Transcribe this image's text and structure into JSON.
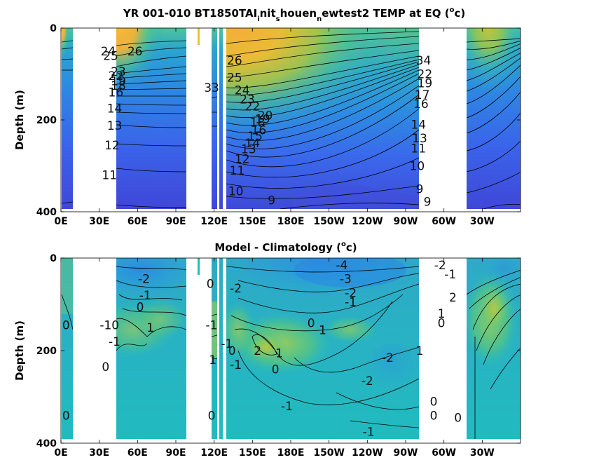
{
  "chart_data": [
    {
      "type": "heatmap",
      "title_main": "YR 001-010 BT1850TAI",
      "title_parts": [
        "i",
        "nit",
        "s",
        "houen",
        "n",
        "ewtest2 TEMP at EQ (",
        "o",
        "c)"
      ],
      "ylabel": "Depth (m)",
      "yticks": [
        "0",
        "200",
        "400"
      ],
      "ylim": [
        400,
        0
      ],
      "xticks": [
        "0E",
        "30E",
        "60E",
        "90E",
        "120E",
        "150E",
        "180E",
        "150W",
        "120W",
        "90W",
        "60W",
        "30W"
      ],
      "xtick_values": [
        0,
        30,
        60,
        90,
        120,
        150,
        180,
        210,
        240,
        270,
        300,
        330
      ],
      "xlim": [
        0,
        360
      ],
      "ocean_lon_ranges": [
        [
          0,
          7
        ],
        [
          35,
          77
        ],
        [
          97,
          100
        ],
        [
          116,
          120
        ],
        [
          122,
          225
        ],
        [
          280,
          313
        ]
      ],
      "colormap": [
        "#3e26a8",
        "#3a5ef0",
        "#2a96d8",
        "#23b9b0",
        "#6acb6c",
        "#c9c03a",
        "#f6b23a",
        "#f9e21c"
      ],
      "color_range": [
        8,
        28
      ],
      "contour_labels": [
        {
          "text": "26",
          "lon": 58,
          "depth": 50
        },
        {
          "text": "25",
          "lon": 39,
          "depth": 60
        },
        {
          "text": "24",
          "lon": 37,
          "depth": 50
        },
        {
          "text": "23",
          "lon": 45,
          "depth": 95
        },
        {
          "text": "22",
          "lon": 43,
          "depth": 104
        },
        {
          "text": "19",
          "lon": 45,
          "depth": 115
        },
        {
          "text": "18",
          "lon": 45,
          "depth": 125
        },
        {
          "text": "16",
          "lon": 43,
          "depth": 140
        },
        {
          "text": "14",
          "lon": 42,
          "depth": 175
        },
        {
          "text": "13",
          "lon": 42,
          "depth": 212
        },
        {
          "text": "12",
          "lon": 40,
          "depth": 255
        },
        {
          "text": "11",
          "lon": 38,
          "depth": 320
        },
        {
          "text": "33",
          "lon": 118,
          "depth": 130
        },
        {
          "text": "26",
          "lon": 136,
          "depth": 70
        },
        {
          "text": "25",
          "lon": 136,
          "depth": 108
        },
        {
          "text": "24",
          "lon": 142,
          "depth": 135
        },
        {
          "text": "23",
          "lon": 146,
          "depth": 155
        },
        {
          "text": "22",
          "lon": 150,
          "depth": 170
        },
        {
          "text": "20",
          "lon": 160,
          "depth": 190
        },
        {
          "text": "19",
          "lon": 158,
          "depth": 198
        },
        {
          "text": "18",
          "lon": 154,
          "depth": 205
        },
        {
          "text": "16",
          "lon": 155,
          "depth": 222
        },
        {
          "text": "15",
          "lon": 152,
          "depth": 235
        },
        {
          "text": "14",
          "lon": 150,
          "depth": 250
        },
        {
          "text": "13",
          "lon": 147,
          "depth": 263
        },
        {
          "text": "12",
          "lon": 142,
          "depth": 285
        },
        {
          "text": "11",
          "lon": 138,
          "depth": 310
        },
        {
          "text": "10",
          "lon": 137,
          "depth": 355
        },
        {
          "text": "9",
          "lon": 165,
          "depth": 375
        },
        {
          "text": "34",
          "lon": 284,
          "depth": 70
        },
        {
          "text": "22",
          "lon": 285,
          "depth": 100
        },
        {
          "text": "19",
          "lon": 285,
          "depth": 120
        },
        {
          "text": "17",
          "lon": 283,
          "depth": 145
        },
        {
          "text": "16",
          "lon": 282,
          "depth": 165
        },
        {
          "text": "14",
          "lon": 280,
          "depth": 210
        },
        {
          "text": "13",
          "lon": 281,
          "depth": 240
        },
        {
          "text": "11",
          "lon": 280,
          "depth": 262
        },
        {
          "text": "10",
          "lon": 279,
          "depth": 300
        },
        {
          "text": "9",
          "lon": 281,
          "depth": 350
        },
        {
          "text": "9",
          "lon": 287,
          "depth": 378
        }
      ]
    },
    {
      "type": "heatmap",
      "title_main": "Model - Climatology (",
      "title_parts": [
        "o",
        "c)"
      ],
      "ylabel": "Depth (m)",
      "yticks": [
        "0",
        "200",
        "400"
      ],
      "ylim": [
        400,
        0
      ],
      "xticks": [
        "0E",
        "30E",
        "60E",
        "90E",
        "120E",
        "150E",
        "180E",
        "150W",
        "120W",
        "90W",
        "60W",
        "30W"
      ],
      "xtick_values": [
        0,
        30,
        60,
        90,
        120,
        150,
        180,
        210,
        240,
        270,
        300,
        330
      ],
      "xlim": [
        0,
        360
      ],
      "ocean_lon_ranges": [
        [
          0,
          7
        ],
        [
          35,
          77
        ],
        [
          97,
          98
        ],
        [
          116,
          120
        ],
        [
          122,
          225
        ],
        [
          280,
          313
        ]
      ],
      "colormap": [
        "#3e26a8",
        "#3a5ef0",
        "#2a96d8",
        "#23b9b0",
        "#6acb6c",
        "#c9c03a",
        "#f6b23a",
        "#f9e21c"
      ],
      "color_range": [
        -6,
        6
      ],
      "contour_labels": [
        {
          "text": "0",
          "lon": 4,
          "depth": 145
        },
        {
          "text": "0",
          "lon": 4,
          "depth": 340
        },
        {
          "text": "-2",
          "lon": 65,
          "depth": 45
        },
        {
          "text": "-1",
          "lon": 66,
          "depth": 80
        },
        {
          "text": "0",
          "lon": 62,
          "depth": 105
        },
        {
          "text": "1",
          "lon": 70,
          "depth": 150
        },
        {
          "text": "-10",
          "lon": 38,
          "depth": 145
        },
        {
          "text": "-1",
          "lon": 42,
          "depth": 180
        },
        {
          "text": "0",
          "lon": 35,
          "depth": 235
        },
        {
          "text": "0",
          "lon": 117,
          "depth": 55
        },
        {
          "text": "-1",
          "lon": 118,
          "depth": 145
        },
        {
          "text": "1",
          "lon": 119,
          "depth": 220
        },
        {
          "text": "0",
          "lon": 118,
          "depth": 340
        },
        {
          "text": "-2",
          "lon": 137,
          "depth": 65
        },
        {
          "text": "-1",
          "lon": 130,
          "depth": 185
        },
        {
          "text": "0",
          "lon": 134,
          "depth": 200
        },
        {
          "text": "-1",
          "lon": 137,
          "depth": 230
        },
        {
          "text": "2",
          "lon": 154,
          "depth": 200
        },
        {
          "text": "1",
          "lon": 171,
          "depth": 205
        },
        {
          "text": "0",
          "lon": 168,
          "depth": 240
        },
        {
          "text": "0",
          "lon": 196,
          "depth": 140
        },
        {
          "text": "1",
          "lon": 205,
          "depth": 155
        },
        {
          "text": "-4",
          "lon": 220,
          "depth": 15
        },
        {
          "text": "-3",
          "lon": 223,
          "depth": 45
        },
        {
          "text": "-2",
          "lon": 227,
          "depth": 75
        },
        {
          "text": "-1",
          "lon": 227,
          "depth": 95
        },
        {
          "text": "-2",
          "lon": 256,
          "depth": 215
        },
        {
          "text": "-2",
          "lon": 240,
          "depth": 265
        },
        {
          "text": "-1",
          "lon": 177,
          "depth": 320
        },
        {
          "text": "-1",
          "lon": 241,
          "depth": 375
        },
        {
          "text": "-2",
          "lon": 297,
          "depth": 15
        },
        {
          "text": "-1",
          "lon": 305,
          "depth": 35
        },
        {
          "text": "2",
          "lon": 307,
          "depth": 85
        },
        {
          "text": "1",
          "lon": 298,
          "depth": 120
        },
        {
          "text": "0",
          "lon": 298,
          "depth": 140
        },
        {
          "text": "1",
          "lon": 281,
          "depth": 200
        },
        {
          "text": "0",
          "lon": 292,
          "depth": 310
        },
        {
          "text": "0",
          "lon": 292,
          "depth": 340
        },
        {
          "text": "0",
          "lon": 311,
          "depth": 345
        }
      ]
    }
  ]
}
